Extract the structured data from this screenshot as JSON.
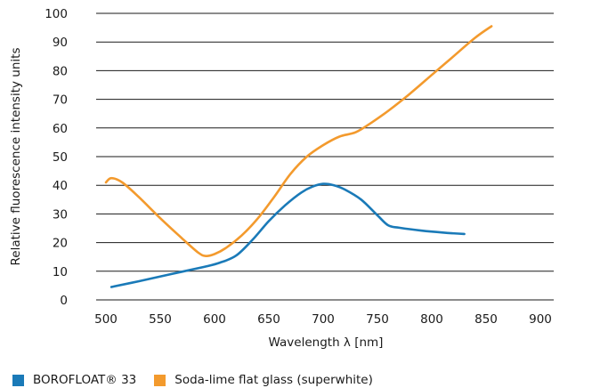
{
  "chart_data": {
    "type": "line",
    "title": "",
    "xlabel": "Wavelength λ [nm]",
    "ylabel": "Relative fluorescence intensity units",
    "xlim": [
      500,
      900
    ],
    "ylim": [
      0,
      100
    ],
    "xticks": [
      500,
      550,
      600,
      650,
      700,
      750,
      800,
      850,
      900
    ],
    "yticks": [
      0,
      10,
      20,
      30,
      40,
      50,
      60,
      70,
      80,
      90,
      100
    ],
    "grid": "horizontal",
    "legend_position": "bottom-left",
    "series": [
      {
        "name": "BOROFLOAT® 33",
        "color": "#1a7ab8",
        "x": [
          505,
          530,
          560,
          590,
          605,
          620,
          635,
          650,
          665,
          680,
          690,
          700,
          710,
          720,
          735,
          750,
          760,
          770,
          790,
          810,
          830
        ],
        "y": [
          4.5,
          6.5,
          9,
          11.5,
          13,
          15.5,
          21,
          27.5,
          33,
          37.5,
          39.5,
          40.5,
          40,
          38.5,
          35,
          29.5,
          26,
          25.2,
          24.2,
          23.5,
          23
        ]
      },
      {
        "name": "Soda-lime flat glass (superwhite)",
        "color": "#f39a2d",
        "x": [
          500,
          505,
          515,
          530,
          550,
          570,
          585,
          592,
          600,
          610,
          625,
          640,
          655,
          670,
          685,
          700,
          715,
          730,
          745,
          760,
          780,
          800,
          820,
          840,
          855
        ],
        "y": [
          41,
          42.5,
          41,
          36,
          28.5,
          21.5,
          16.5,
          15.3,
          16,
          18,
          22.5,
          28.5,
          36,
          44,
          50,
          54,
          57,
          58.5,
          62,
          66,
          72,
          78.5,
          85,
          91.5,
          95.5
        ]
      }
    ]
  }
}
